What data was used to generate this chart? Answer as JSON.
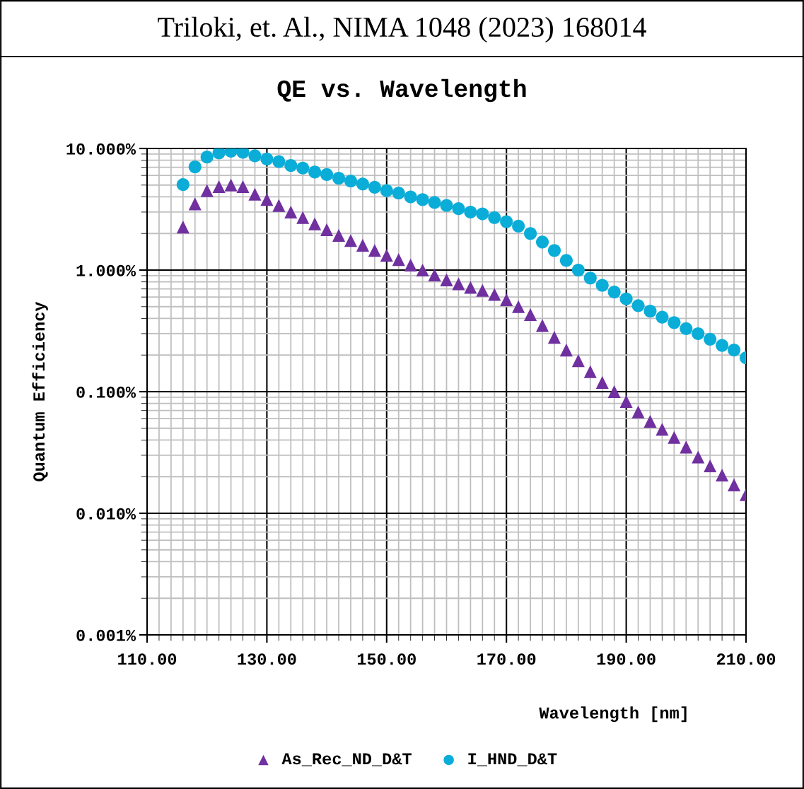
{
  "chart_data": {
    "type": "scatter",
    "title": "QE vs. Wavelength",
    "xlabel": "Wavelength [nm]",
    "ylabel": "Quantum Efficiency",
    "annotations": [
      "Triloki, et. Al., NIMA 1048 (2023) 168014"
    ],
    "xlim": [
      110,
      210
    ],
    "xticks": [
      {
        "value": 110,
        "label": "110.00"
      },
      {
        "value": 130,
        "label": "130.00"
      },
      {
        "value": 150,
        "label": "150.00"
      },
      {
        "value": 170,
        "label": "170.00"
      },
      {
        "value": 190,
        "label": "190.00"
      },
      {
        "value": 210,
        "label": "210.00"
      }
    ],
    "ylim": [
      0.001,
      10
    ],
    "yticks": [
      {
        "value": 0.001,
        "label": "0.001%"
      },
      {
        "value": 0.01,
        "label": "0.010%"
      },
      {
        "value": 0.1,
        "label": "0.100%"
      },
      {
        "value": 1,
        "label": "1.000%"
      },
      {
        "value": 10,
        "label": "10.000%"
      }
    ],
    "log": "y",
    "grid": true,
    "legend": "bottom",
    "x": [
      116,
      118,
      120,
      122,
      124,
      126,
      128,
      130,
      132,
      134,
      136,
      138,
      140,
      142,
      144,
      146,
      148,
      150,
      152,
      154,
      156,
      158,
      160,
      162,
      164,
      166,
      168,
      170,
      172,
      174,
      176,
      178,
      180,
      182,
      184,
      186,
      188,
      190,
      192,
      194,
      196,
      198,
      200,
      202,
      204,
      206,
      208,
      210
    ],
    "series": [
      {
        "name": "As_Rec_ND_D&T",
        "color": "#7030a0",
        "marker": "triangle",
        "values": [
          2.26,
          3.5,
          4.5,
          4.85,
          5.0,
          4.85,
          4.2,
          3.8,
          3.4,
          3.0,
          2.7,
          2.4,
          2.15,
          1.93,
          1.75,
          1.6,
          1.45,
          1.32,
          1.22,
          1.1,
          1.0,
          0.91,
          0.83,
          0.77,
          0.72,
          0.68,
          0.63,
          0.57,
          0.5,
          0.43,
          0.35,
          0.28,
          0.22,
          0.18,
          0.146,
          0.119,
          0.1,
          0.083,
          0.068,
          0.057,
          0.049,
          0.042,
          0.035,
          0.029,
          0.0245,
          0.0206,
          0.0171,
          0.0142
        ]
      },
      {
        "name": "I_HND_D&T",
        "color": "#0aadd8",
        "marker": "circle",
        "values": [
          5.05,
          7.06,
          8.5,
          9.2,
          9.5,
          9.3,
          8.7,
          8.2,
          7.8,
          7.25,
          6.9,
          6.4,
          6.1,
          5.7,
          5.4,
          5.1,
          4.8,
          4.5,
          4.3,
          4.0,
          3.8,
          3.6,
          3.4,
          3.2,
          3.0,
          2.9,
          2.7,
          2.5,
          2.3,
          2.0,
          1.7,
          1.45,
          1.2,
          1.0,
          0.86,
          0.75,
          0.66,
          0.58,
          0.51,
          0.46,
          0.41,
          0.37,
          0.33,
          0.3,
          0.27,
          0.24,
          0.22,
          0.19
        ]
      }
    ]
  }
}
